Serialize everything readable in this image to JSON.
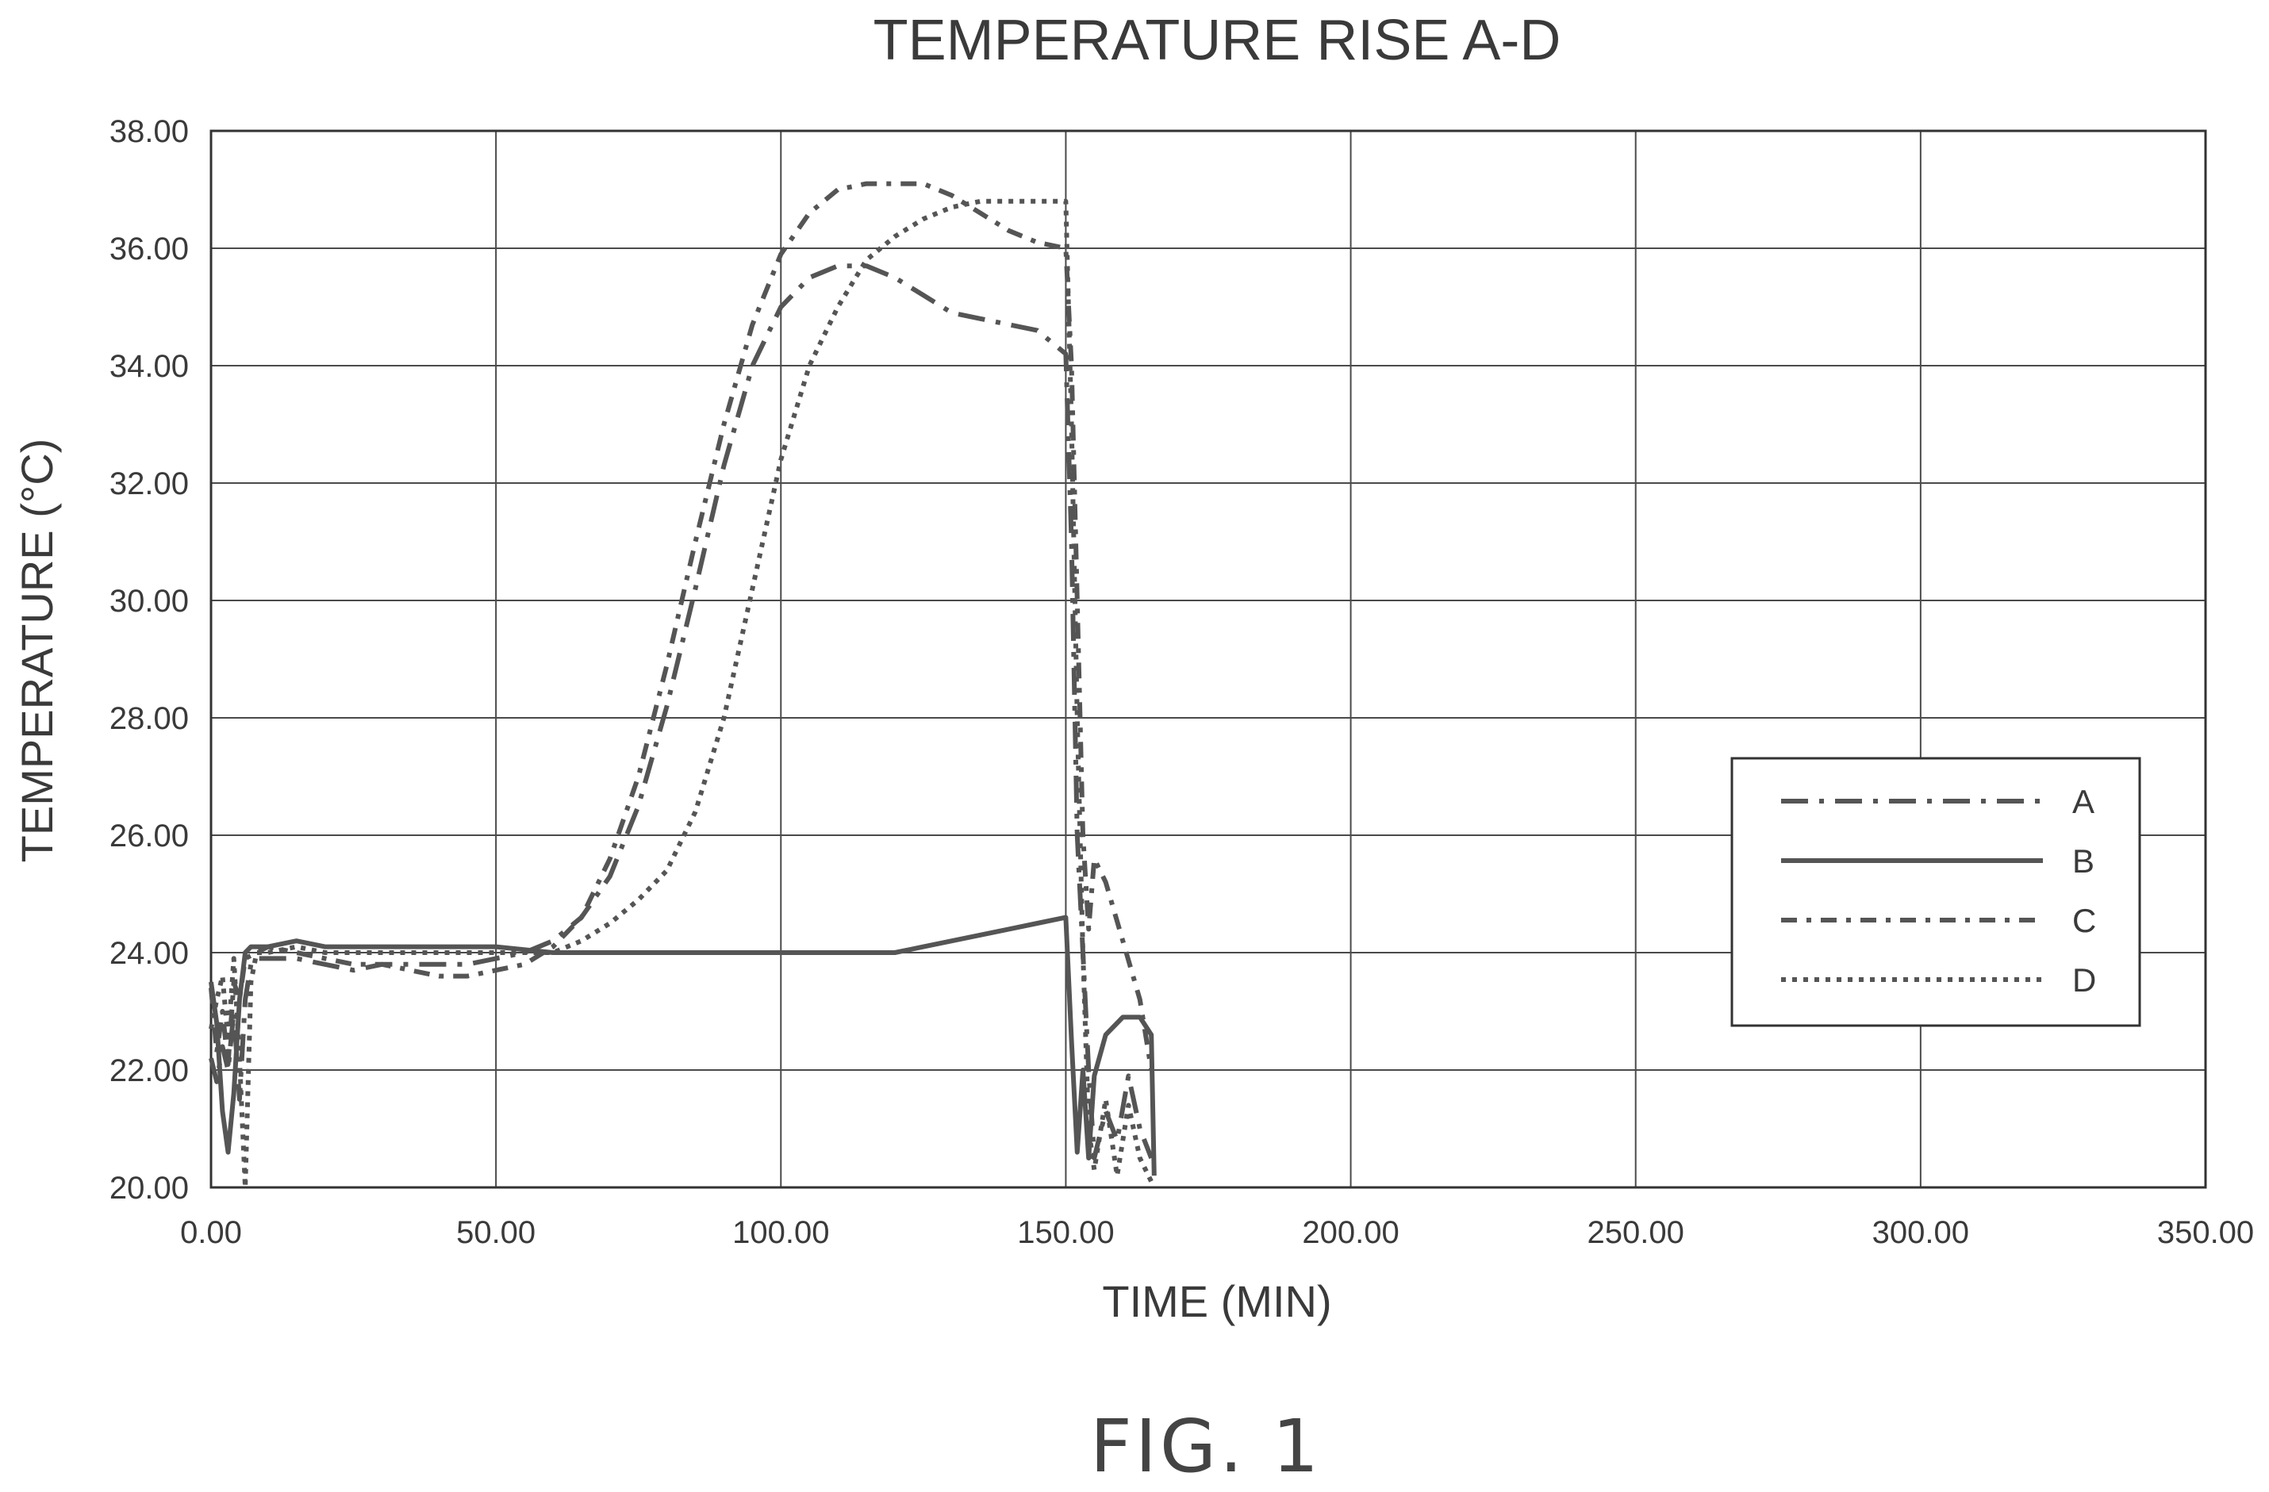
{
  "figure_label": "FIG. 1",
  "chart_data": {
    "type": "line",
    "title": "TEMPERATURE RISE A-D",
    "xlabel": "TIME (MIN)",
    "ylabel": "TEMPERATURE (°C)",
    "xlim": [
      0,
      350
    ],
    "ylim": [
      20,
      38
    ],
    "x_ticks": [
      "0.00",
      "50.00",
      "100.00",
      "150.00",
      "200.00",
      "250.00",
      "300.00",
      "350.00"
    ],
    "y_ticks": [
      "20.00",
      "22.00",
      "24.00",
      "26.00",
      "28.00",
      "30.00",
      "32.00",
      "34.00",
      "36.00",
      "38.00"
    ],
    "x_tick_values": [
      0,
      50,
      100,
      150,
      200,
      250,
      300,
      350
    ],
    "y_tick_values": [
      20,
      22,
      24,
      26,
      28,
      30,
      32,
      34,
      36,
      38
    ],
    "grid": true,
    "legend": {
      "position": "right",
      "entries": [
        "A",
        "B",
        "C",
        "D"
      ]
    },
    "series": [
      {
        "name": "A",
        "line_style": "long-dash-dot",
        "points": [
          [
            0,
            22.2
          ],
          [
            1,
            21.8
          ],
          [
            2,
            22.4
          ],
          [
            3,
            22.0
          ],
          [
            4,
            23.0
          ],
          [
            5,
            21.5
          ],
          [
            6,
            23.2
          ],
          [
            7,
            23.8
          ],
          [
            8,
            23.9
          ],
          [
            10,
            23.9
          ],
          [
            15,
            23.9
          ],
          [
            20,
            23.8
          ],
          [
            25,
            23.7
          ],
          [
            30,
            23.8
          ],
          [
            35,
            23.8
          ],
          [
            40,
            23.8
          ],
          [
            45,
            23.8
          ],
          [
            50,
            23.9
          ],
          [
            55,
            24.0
          ],
          [
            60,
            24.2
          ],
          [
            65,
            24.6
          ],
          [
            70,
            25.3
          ],
          [
            75,
            26.5
          ],
          [
            80,
            28.2
          ],
          [
            85,
            30.2
          ],
          [
            90,
            32.3
          ],
          [
            95,
            34.0
          ],
          [
            100,
            35.0
          ],
          [
            105,
            35.5
          ],
          [
            110,
            35.7
          ],
          [
            115,
            35.7
          ],
          [
            120,
            35.5
          ],
          [
            125,
            35.2
          ],
          [
            130,
            34.9
          ],
          [
            135,
            34.8
          ],
          [
            140,
            34.7
          ],
          [
            145,
            34.6
          ],
          [
            150,
            34.2
          ],
          [
            151,
            31.0
          ],
          [
            152,
            26.0
          ],
          [
            153,
            24.0
          ],
          [
            154,
            22.0
          ],
          [
            155,
            20.5
          ],
          [
            157,
            21.3
          ],
          [
            159,
            20.8
          ],
          [
            161,
            21.9
          ],
          [
            163,
            21.0
          ],
          [
            165,
            20.5
          ]
        ]
      },
      {
        "name": "B",
        "line_style": "solid",
        "points": [
          [
            0,
            23.5
          ],
          [
            1,
            22.8
          ],
          [
            2,
            21.3
          ],
          [
            3,
            20.6
          ],
          [
            4,
            21.6
          ],
          [
            5,
            23.2
          ],
          [
            6,
            24.0
          ],
          [
            7,
            24.1
          ],
          [
            8,
            24.1
          ],
          [
            10,
            24.1
          ],
          [
            15,
            24.2
          ],
          [
            20,
            24.1
          ],
          [
            25,
            24.1
          ],
          [
            30,
            24.1
          ],
          [
            40,
            24.1
          ],
          [
            50,
            24.1
          ],
          [
            60,
            24.0
          ],
          [
            70,
            24.0
          ],
          [
            80,
            24.0
          ],
          [
            90,
            24.0
          ],
          [
            100,
            24.0
          ],
          [
            110,
            24.0
          ],
          [
            120,
            24.0
          ],
          [
            125,
            24.1
          ],
          [
            130,
            24.2
          ],
          [
            135,
            24.3
          ],
          [
            140,
            24.4
          ],
          [
            145,
            24.5
          ],
          [
            150,
            24.6
          ],
          [
            151,
            22.5
          ],
          [
            152,
            20.6
          ],
          [
            153,
            22.0
          ],
          [
            154,
            20.5
          ],
          [
            155,
            21.9
          ],
          [
            157,
            22.6
          ],
          [
            160,
            22.9
          ],
          [
            163,
            22.9
          ],
          [
            165,
            22.6
          ],
          [
            165.5,
            20.2
          ]
        ]
      },
      {
        "name": "C",
        "line_style": "dash-dot",
        "points": [
          [
            0,
            23.4
          ],
          [
            1,
            22.3
          ],
          [
            2,
            23.0
          ],
          [
            3,
            22.1
          ],
          [
            4,
            23.5
          ],
          [
            5,
            23.2
          ],
          [
            6,
            23.9
          ],
          [
            8,
            24.0
          ],
          [
            10,
            24.1
          ],
          [
            15,
            24.0
          ],
          [
            20,
            23.9
          ],
          [
            25,
            23.8
          ],
          [
            30,
            23.8
          ],
          [
            35,
            23.7
          ],
          [
            40,
            23.6
          ],
          [
            45,
            23.6
          ],
          [
            50,
            23.7
          ],
          [
            55,
            23.8
          ],
          [
            60,
            24.1
          ],
          [
            65,
            24.6
          ],
          [
            70,
            25.6
          ],
          [
            75,
            27.0
          ],
          [
            80,
            28.9
          ],
          [
            85,
            31.0
          ],
          [
            90,
            33.0
          ],
          [
            95,
            34.7
          ],
          [
            100,
            35.9
          ],
          [
            105,
            36.6
          ],
          [
            110,
            37.0
          ],
          [
            115,
            37.1
          ],
          [
            120,
            37.1
          ],
          [
            125,
            37.1
          ],
          [
            130,
            36.9
          ],
          [
            135,
            36.6
          ],
          [
            140,
            36.3
          ],
          [
            145,
            36.1
          ],
          [
            150,
            36.0
          ],
          [
            151,
            34.0
          ],
          [
            152,
            30.0
          ],
          [
            153,
            26.0
          ],
          [
            154,
            24.4
          ],
          [
            155,
            25.6
          ],
          [
            157,
            25.2
          ],
          [
            160,
            24.2
          ],
          [
            163,
            23.2
          ],
          [
            165,
            22.0
          ]
        ]
      },
      {
        "name": "D",
        "line_style": "dotted",
        "points": [
          [
            0,
            22.7
          ],
          [
            1,
            23.2
          ],
          [
            2,
            23.6
          ],
          [
            3,
            22.5
          ],
          [
            4,
            23.9
          ],
          [
            5,
            22.2
          ],
          [
            6,
            20.0
          ],
          [
            7,
            23.5
          ],
          [
            8,
            24.0
          ],
          [
            10,
            24.0
          ],
          [
            15,
            24.1
          ],
          [
            20,
            24.0
          ],
          [
            25,
            24.0
          ],
          [
            30,
            24.0
          ],
          [
            40,
            24.0
          ],
          [
            50,
            24.0
          ],
          [
            55,
            24.0
          ],
          [
            60,
            24.0
          ],
          [
            65,
            24.2
          ],
          [
            70,
            24.5
          ],
          [
            75,
            24.9
          ],
          [
            80,
            25.4
          ],
          [
            85,
            26.4
          ],
          [
            90,
            28.0
          ],
          [
            95,
            30.2
          ],
          [
            100,
            32.4
          ],
          [
            105,
            34.0
          ],
          [
            110,
            35.0
          ],
          [
            115,
            35.8
          ],
          [
            120,
            36.2
          ],
          [
            125,
            36.5
          ],
          [
            130,
            36.7
          ],
          [
            135,
            36.8
          ],
          [
            140,
            36.8
          ],
          [
            145,
            36.8
          ],
          [
            150,
            36.8
          ],
          [
            151,
            33.0
          ],
          [
            152,
            28.0
          ],
          [
            153,
            24.0
          ],
          [
            154,
            21.0
          ],
          [
            155,
            20.3
          ],
          [
            157,
            21.5
          ],
          [
            159,
            20.2
          ],
          [
            161,
            21.4
          ],
          [
            163,
            20.5
          ],
          [
            165,
            20.1
          ]
        ]
      }
    ]
  }
}
